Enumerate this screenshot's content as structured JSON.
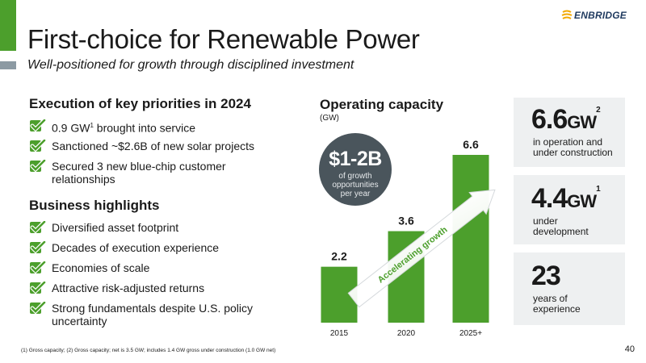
{
  "header": {
    "title": "First-choice for Renewable Power",
    "subtitle": "Well-positioned for growth through disciplined investment",
    "logo_text": "ENBRIDGE",
    "brand_color": "#4c9f2c",
    "logo_color": "#1f3a5f"
  },
  "priorities": {
    "title": "Execution of key priorities in 2024",
    "items": [
      {
        "text": "0.9 GW",
        "sup": "1",
        "rest": " brought into service"
      },
      {
        "text": "Sanctioned ~$2.6B of new solar projects"
      },
      {
        "text": "Secured 3 new blue-chip customer relationships"
      }
    ]
  },
  "highlights": {
    "title": "Business highlights",
    "items": [
      "Diversified asset footprint",
      "Decades of execution experience",
      "Economies of scale",
      "Attractive risk-adjusted returns",
      "Strong fundamentals despite U.S. policy uncertainty"
    ]
  },
  "chart_data": {
    "type": "bar",
    "title": "Operating capacity",
    "subtitle": "(GW)",
    "categories": [
      "2015",
      "2020",
      "2025+"
    ],
    "values": [
      2.2,
      3.6,
      6.6
    ],
    "value_labels": [
      "2.2",
      "3.6",
      "6.6"
    ],
    "ylim": [
      0,
      6.6
    ],
    "bar_color": "#4c9f2c",
    "annotation": "Accelerating growth",
    "grid": false
  },
  "bubble": {
    "value": "$1-2B",
    "text": "of growth opportunities per year",
    "color": "#4a555c"
  },
  "stats": [
    {
      "num": "6.6",
      "unit": "GW",
      "sup": "2",
      "desc": "in operation and under construction"
    },
    {
      "num": "4.4",
      "unit": "GW",
      "sup": "1",
      "desc": "under development"
    },
    {
      "num": "23",
      "unit": "",
      "sup": "",
      "desc": "years of experience"
    }
  ],
  "footnote": "(1) Gross capacity; (2) Gross capacity; net is 3.5 GW; includes 1.4 GW gross under construction (1.0 GW net)",
  "page_number": "40"
}
